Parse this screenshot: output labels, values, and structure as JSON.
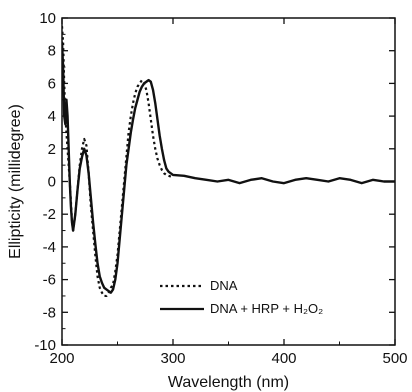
{
  "chart_data": {
    "type": "line",
    "xlabel": "Wavelength (nm)",
    "ylabel": "Ellipticity (millidegree)",
    "xlim": [
      200,
      500
    ],
    "ylim": [
      -10,
      10
    ],
    "x_ticks": [
      200,
      300,
      400,
      500
    ],
    "x_tick_labels": [
      "200",
      "300",
      "400",
      "500"
    ],
    "y_ticks": [
      10,
      8,
      6,
      4,
      2,
      0,
      -2,
      -4,
      -6,
      -8,
      -10
    ],
    "y_tick_labels": [
      "10",
      "8",
      "6",
      "4",
      "2",
      "0",
      "-2",
      "-4",
      "-6",
      "-8",
      "-10"
    ],
    "grid": false,
    "legend_position": "bottom-center",
    "series": [
      {
        "name": "DNA",
        "style": "dotted",
        "color": "#111111",
        "x": [
          200,
          201,
          202,
          203,
          204,
          205,
          206,
          207,
          208,
          209,
          210,
          212,
          214,
          216,
          218,
          220,
          222,
          224,
          226,
          228,
          230,
          232,
          234,
          236,
          238,
          240,
          242,
          244,
          246,
          248,
          250,
          252,
          254,
          256,
          258,
          260,
          262,
          264,
          266,
          268,
          270,
          272,
          274,
          276,
          278,
          280,
          282,
          284,
          286,
          288,
          290,
          292,
          294,
          296,
          298,
          300
        ],
        "y": [
          9.5,
          8.5,
          6.0,
          4.0,
          3.0,
          2.0,
          1.0,
          0.0,
          -1.2,
          -2.4,
          -3.0,
          -2.0,
          -0.5,
          1.0,
          2.0,
          2.6,
          2.2,
          0.5,
          -1.5,
          -3.0,
          -4.5,
          -5.8,
          -6.5,
          -6.8,
          -7.0,
          -7.0,
          -6.8,
          -6.5,
          -6.3,
          -5.5,
          -4.5,
          -3.0,
          -1.5,
          0.0,
          1.5,
          3.0,
          4.0,
          4.8,
          5.4,
          5.8,
          6.0,
          6.2,
          6.0,
          5.6,
          4.8,
          3.8,
          2.8,
          2.0,
          1.4,
          1.0,
          0.7,
          0.5,
          0.4,
          0.35,
          0.3,
          0.25
        ]
      },
      {
        "name": "DNA + HRP + H₂O₂",
        "style": "solid",
        "color": "#111111",
        "x": [
          200,
          201,
          202,
          203,
          204,
          205,
          206,
          207,
          208,
          209,
          210,
          212,
          214,
          216,
          218,
          220,
          222,
          224,
          226,
          228,
          230,
          232,
          234,
          236,
          238,
          240,
          242,
          244,
          246,
          248,
          250,
          252,
          254,
          256,
          258,
          260,
          262,
          264,
          266,
          268,
          270,
          272,
          274,
          276,
          278,
          280,
          282,
          284,
          286,
          288,
          290,
          292,
          294,
          296,
          298,
          300,
          310,
          320,
          330,
          340,
          350,
          360,
          370,
          380,
          390,
          400,
          410,
          420,
          430,
          440,
          450,
          460,
          470,
          480,
          490,
          500
        ],
        "y": [
          8.5,
          7.0,
          4.0,
          3.5,
          5.0,
          4.0,
          2.0,
          0.0,
          -1.5,
          -2.5,
          -3.0,
          -2.0,
          -0.5,
          0.8,
          1.5,
          2.0,
          1.6,
          0.5,
          -1.0,
          -2.5,
          -3.8,
          -5.0,
          -5.8,
          -6.2,
          -6.5,
          -6.6,
          -6.7,
          -6.8,
          -6.6,
          -6.0,
          -5.0,
          -3.5,
          -2.0,
          -0.5,
          1.0,
          2.0,
          3.0,
          3.8,
          4.5,
          5.0,
          5.5,
          5.8,
          6.0,
          6.1,
          6.2,
          6.1,
          5.6,
          4.8,
          3.8,
          2.8,
          2.0,
          1.3,
          0.8,
          0.6,
          0.5,
          0.4,
          0.35,
          0.2,
          0.1,
          0.0,
          0.1,
          -0.1,
          0.1,
          0.2,
          0.0,
          -0.1,
          0.1,
          0.2,
          0.1,
          0.0,
          0.2,
          0.1,
          -0.1,
          0.1,
          0.0,
          0.0
        ]
      }
    ]
  }
}
